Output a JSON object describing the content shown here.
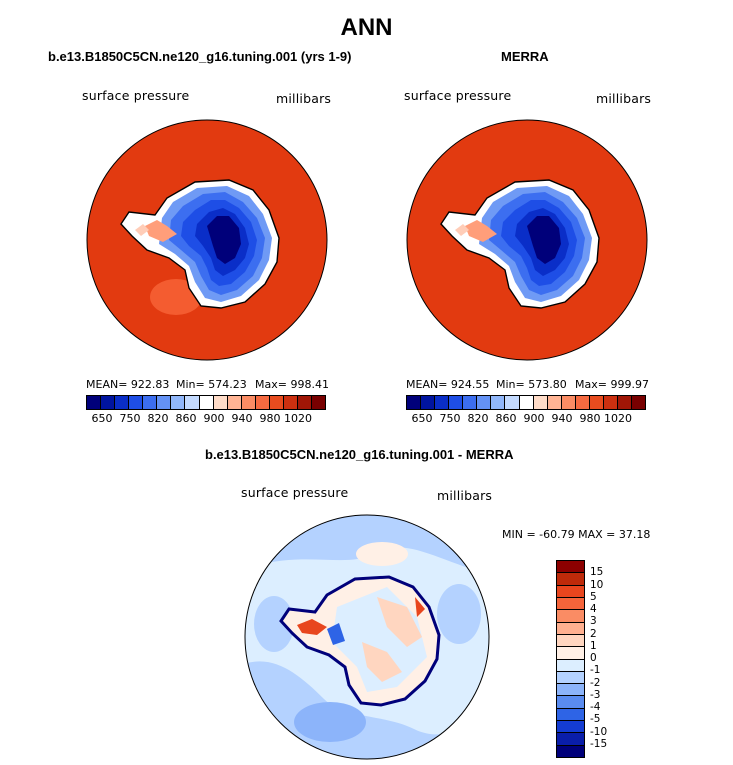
{
  "title": "ANN",
  "panels": [
    {
      "title": "b.e13.B1850C5CN.ne120_g16.tuning.001 (yrs 1-9)",
      "left_label": "surface pressure",
      "right_label": "millibars",
      "stats": {
        "mean": "MEAN= 922.83",
        "min": "Min= 574.23",
        "max": "Max= 998.41"
      }
    },
    {
      "title": "MERRA",
      "left_label": "surface pressure",
      "right_label": "millibars",
      "stats": {
        "mean": "MEAN= 924.55",
        "min": "Min= 573.80",
        "max": "Max= 999.97"
      }
    }
  ],
  "diff_panel": {
    "title": "b.e13.B1850C5CN.ne120_g16.tuning.001 - MERRA",
    "left_label": "surface pressure",
    "right_label": "millibars",
    "minmax": "MIN = -60.79 MAX =  37.18"
  },
  "chart_data": [
    {
      "type": "heatmap",
      "projection": "polar-stereographic (south pole)",
      "field": "surface pressure",
      "units": "millibars",
      "colorbar": {
        "labels": [
          "650",
          "750",
          "820",
          "860",
          "900",
          "940",
          "980",
          "1020"
        ],
        "colors": [
          "#00007a",
          "#0014a0",
          "#0a2ec8",
          "#1e4ee6",
          "#3c6ef0",
          "#6492f5",
          "#91b7fa",
          "#c3daff",
          "#ffffff",
          "#ffdcc8",
          "#ffb494",
          "#fa8c64",
          "#f56a40",
          "#e84c1f",
          "#cc3010",
          "#a01606",
          "#780000"
        ]
      },
      "stats": {
        "mean": 922.83,
        "min": 574.23,
        "max": 998.41
      }
    },
    {
      "type": "heatmap",
      "projection": "polar-stereographic (south pole)",
      "field": "surface pressure",
      "units": "millibars",
      "colorbar": {
        "labels": [
          "650",
          "750",
          "820",
          "860",
          "900",
          "940",
          "980",
          "1020"
        ],
        "colors": [
          "#00007a",
          "#0014a0",
          "#0a2ec8",
          "#1e4ee6",
          "#3c6ef0",
          "#6492f5",
          "#91b7fa",
          "#c3daff",
          "#ffffff",
          "#ffdcc8",
          "#ffb494",
          "#fa8c64",
          "#f56a40",
          "#e84c1f",
          "#cc3010",
          "#a01606",
          "#780000"
        ]
      },
      "stats": {
        "mean": 924.55,
        "min": 573.8,
        "max": 999.97
      }
    },
    {
      "type": "heatmap",
      "projection": "polar-stereographic (south pole)",
      "field": "surface pressure difference",
      "units": "millibars",
      "colorbar": {
        "labels": [
          "15",
          "10",
          "5",
          "4",
          "3",
          "2",
          "1",
          "0",
          "-1",
          "-2",
          "-3",
          "-4",
          "-5",
          "-10",
          "-15"
        ],
        "colors": [
          "#8c0000",
          "#be2a0a",
          "#e8461e",
          "#f5643a",
          "#fa8c64",
          "#ffb090",
          "#ffd6c0",
          "#fff0e6",
          "#dceeff",
          "#b4d2ff",
          "#8cb4fa",
          "#5a8cf0",
          "#2e64e6",
          "#143cd2",
          "#0a1eaa",
          "#00007a"
        ]
      },
      "stats": {
        "min": -60.79,
        "max": 37.18
      }
    }
  ]
}
